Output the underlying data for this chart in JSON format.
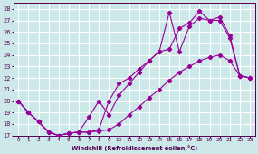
{
  "xlabel": "Windchill (Refroidissement éolien,°C)",
  "xlim": [
    -0.5,
    23.5
  ],
  "ylim": [
    17,
    28.5
  ],
  "yticks": [
    17,
    18,
    19,
    20,
    21,
    22,
    23,
    24,
    25,
    26,
    27,
    28
  ],
  "xticks": [
    0,
    1,
    2,
    3,
    4,
    5,
    6,
    7,
    8,
    9,
    10,
    11,
    12,
    13,
    14,
    15,
    16,
    17,
    18,
    19,
    20,
    21,
    22,
    23
  ],
  "bg_color": "#cce8e8",
  "grid_color": "#ffffff",
  "line_color": "#990099",
  "line1_y": [
    20.0,
    19.0,
    18.2,
    17.3,
    17.0,
    17.2,
    17.3,
    17.3,
    17.4,
    17.5,
    18.0,
    18.8,
    19.5,
    20.3,
    21.0,
    21.8,
    22.5,
    23.0,
    23.5,
    23.8,
    24.0,
    23.5,
    22.2,
    22.0
  ],
  "line2_y": [
    20.0,
    19.0,
    18.2,
    17.3,
    17.0,
    17.2,
    17.3,
    18.6,
    20.0,
    18.8,
    20.5,
    21.5,
    22.5,
    23.5,
    24.3,
    27.7,
    24.3,
    26.5,
    27.2,
    27.0,
    27.0,
    25.5,
    22.2,
    22.0
  ],
  "line3_y": [
    20.0,
    19.0,
    18.2,
    17.3,
    17.0,
    17.2,
    17.3,
    17.3,
    17.5,
    20.0,
    21.5,
    22.0,
    22.8,
    23.5,
    24.3,
    24.5,
    26.3,
    26.8,
    27.8,
    27.0,
    27.3,
    25.7,
    22.2,
    22.0
  ]
}
